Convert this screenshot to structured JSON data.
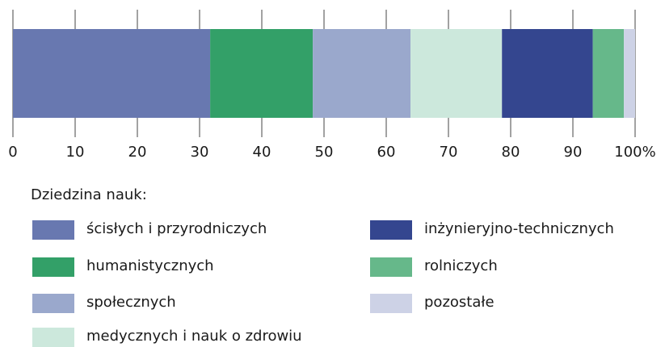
{
  "chart_data": {
    "type": "bar",
    "orientation": "horizontal",
    "stacked": true,
    "xlim": [
      0,
      100
    ],
    "xticks": [
      0,
      10,
      20,
      30,
      40,
      50,
      60,
      70,
      80,
      90,
      {
        "value": 100,
        "label": "100%"
      }
    ],
    "legend_title": "Dziedzina nauk:",
    "series": [
      {
        "name": "ścisłych i przyrodniczych",
        "color": "#6878b0",
        "values": [
          31.7
        ]
      },
      {
        "name": "humanistycznych",
        "color": "#33a068",
        "values": [
          16.5
        ]
      },
      {
        "name": "społecznych",
        "color": "#9aa8cc",
        "values": [
          15.7
        ]
      },
      {
        "name": "medycznych i nauk o zdrowiu",
        "color": "#cce8dc",
        "values": [
          14.7
        ]
      },
      {
        "name": "inżynieryjno-technicznych",
        "color": "#34468f",
        "values": [
          14.6
        ]
      },
      {
        "name": "rolniczych",
        "color": "#66b88a",
        "values": [
          5.0
        ]
      },
      {
        "name": "pozostałe",
        "color": "#cdd2e6",
        "values": [
          1.8
        ]
      }
    ]
  }
}
